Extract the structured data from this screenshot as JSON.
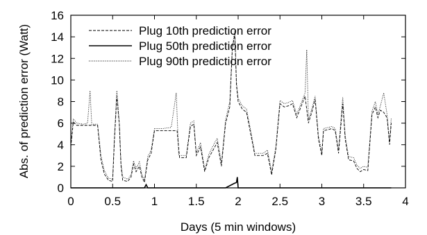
{
  "chart_data": {
    "type": "line",
    "xlabel": "Days (5 min windows)",
    "ylabel": "Abs. of prediction error (Watt)",
    "xlim": [
      0,
      4
    ],
    "ylim": [
      0,
      16
    ],
    "xticks": [
      "0",
      "0.5",
      "1",
      "1.5",
      "2",
      "2.5",
      "3",
      "3.5",
      "4"
    ],
    "yticks": [
      "0",
      "2",
      "4",
      "6",
      "8",
      "10",
      "12",
      "14",
      "16"
    ],
    "grid": false,
    "legend_position": "top-left",
    "series": [
      {
        "name": "Plug 10th prediction error",
        "style": "dashed",
        "color": "#000000",
        "points": [
          [
            0.0,
            3.8
          ],
          [
            0.03,
            6.1
          ],
          [
            0.07,
            5.8
          ],
          [
            0.15,
            5.8
          ],
          [
            0.2,
            5.8
          ],
          [
            0.28,
            5.8
          ],
          [
            0.32,
            5.8
          ],
          [
            0.36,
            2.6
          ],
          [
            0.4,
            1.3
          ],
          [
            0.45,
            0.7
          ],
          [
            0.5,
            0.6
          ],
          [
            0.52,
            4.2
          ],
          [
            0.55,
            8.5
          ],
          [
            0.58,
            5.8
          ],
          [
            0.6,
            2.0
          ],
          [
            0.62,
            0.7
          ],
          [
            0.68,
            0.6
          ],
          [
            0.72,
            1.0
          ],
          [
            0.75,
            2.2
          ],
          [
            0.78,
            1.5
          ],
          [
            0.82,
            2.0
          ],
          [
            0.85,
            1.0
          ],
          [
            0.88,
            0.5
          ],
          [
            0.92,
            2.6
          ],
          [
            0.96,
            3.2
          ],
          [
            1.0,
            5.3
          ],
          [
            1.1,
            5.3
          ],
          [
            1.2,
            5.3
          ],
          [
            1.27,
            5.3
          ],
          [
            1.3,
            2.8
          ],
          [
            1.38,
            2.8
          ],
          [
            1.43,
            5.7
          ],
          [
            1.47,
            5.9
          ],
          [
            1.5,
            3.0
          ],
          [
            1.55,
            3.8
          ],
          [
            1.6,
            1.5
          ],
          [
            1.65,
            2.8
          ],
          [
            1.7,
            3.5
          ],
          [
            1.75,
            4.2
          ],
          [
            1.8,
            2.0
          ],
          [
            1.85,
            6.0
          ],
          [
            1.9,
            7.5
          ],
          [
            1.93,
            12.8
          ],
          [
            1.96,
            14.3
          ],
          [
            1.98,
            9.5
          ],
          [
            2.0,
            8.0
          ],
          [
            2.05,
            7.3
          ],
          [
            2.1,
            7.0
          ],
          [
            2.15,
            5.0
          ],
          [
            2.2,
            3.0
          ],
          [
            2.25,
            3.0
          ],
          [
            2.3,
            3.0
          ],
          [
            2.35,
            3.2
          ],
          [
            2.4,
            1.2
          ],
          [
            2.45,
            3.5
          ],
          [
            2.5,
            7.8
          ],
          [
            2.55,
            7.5
          ],
          [
            2.6,
            7.6
          ],
          [
            2.65,
            7.8
          ],
          [
            2.7,
            6.5
          ],
          [
            2.75,
            7.5
          ],
          [
            2.8,
            8.5
          ],
          [
            2.84,
            6.0
          ],
          [
            2.88,
            7.0
          ],
          [
            2.92,
            8.2
          ],
          [
            2.96,
            4.5
          ],
          [
            3.0,
            3.0
          ],
          [
            3.02,
            5.3
          ],
          [
            3.08,
            5.4
          ],
          [
            3.12,
            5.5
          ],
          [
            3.16,
            5.3
          ],
          [
            3.2,
            3.2
          ],
          [
            3.25,
            7.8
          ],
          [
            3.28,
            4.5
          ],
          [
            3.32,
            2.6
          ],
          [
            3.38,
            2.5
          ],
          [
            3.42,
            1.8
          ],
          [
            3.46,
            1.5
          ],
          [
            3.5,
            1.7
          ],
          [
            3.55,
            1.6
          ],
          [
            3.6,
            6.8
          ],
          [
            3.64,
            7.5
          ],
          [
            3.67,
            6.5
          ],
          [
            3.7,
            7.2
          ],
          [
            3.74,
            7.0
          ],
          [
            3.78,
            6.5
          ],
          [
            3.81,
            4.0
          ],
          [
            3.83,
            6.0
          ]
        ]
      },
      {
        "name": "Plug 50th prediction error",
        "style": "solid",
        "color": "#000000",
        "points": [
          [
            0.0,
            0.0
          ],
          [
            0.88,
            0.0
          ],
          [
            0.9,
            0.3
          ],
          [
            0.92,
            0.0
          ],
          [
            1.85,
            0.0
          ],
          [
            1.9,
            0.2
          ],
          [
            1.95,
            0.4
          ],
          [
            1.98,
            0.5
          ],
          [
            1.99,
            1.0
          ],
          [
            2.0,
            0.0
          ],
          [
            3.83,
            0.0
          ]
        ]
      },
      {
        "name": "Plug 90th prediction error",
        "style": "dotted",
        "color": "#000000",
        "points": [
          [
            0.0,
            4.0
          ],
          [
            0.03,
            6.4
          ],
          [
            0.07,
            6.0
          ],
          [
            0.15,
            5.9
          ],
          [
            0.2,
            6.0
          ],
          [
            0.23,
            9.0
          ],
          [
            0.25,
            5.9
          ],
          [
            0.32,
            5.9
          ],
          [
            0.36,
            3.0
          ],
          [
            0.4,
            1.6
          ],
          [
            0.45,
            0.9
          ],
          [
            0.5,
            0.8
          ],
          [
            0.52,
            4.6
          ],
          [
            0.55,
            9.0
          ],
          [
            0.58,
            6.0
          ],
          [
            0.6,
            2.3
          ],
          [
            0.62,
            1.0
          ],
          [
            0.68,
            0.8
          ],
          [
            0.72,
            1.2
          ],
          [
            0.75,
            2.5
          ],
          [
            0.78,
            1.8
          ],
          [
            0.82,
            2.4
          ],
          [
            0.85,
            1.2
          ],
          [
            0.88,
            0.7
          ],
          [
            0.92,
            2.9
          ],
          [
            0.96,
            3.5
          ],
          [
            1.0,
            5.5
          ],
          [
            1.1,
            5.5
          ],
          [
            1.2,
            5.6
          ],
          [
            1.26,
            8.8
          ],
          [
            1.29,
            3.0
          ],
          [
            1.38,
            3.0
          ],
          [
            1.43,
            6.0
          ],
          [
            1.47,
            6.2
          ],
          [
            1.5,
            3.2
          ],
          [
            1.55,
            4.2
          ],
          [
            1.6,
            1.7
          ],
          [
            1.65,
            3.1
          ],
          [
            1.7,
            3.9
          ],
          [
            1.75,
            4.6
          ],
          [
            1.8,
            2.3
          ],
          [
            1.85,
            6.3
          ],
          [
            1.9,
            8.0
          ],
          [
            1.93,
            13.0
          ],
          [
            1.96,
            14.6
          ],
          [
            1.98,
            9.8
          ],
          [
            2.0,
            8.3
          ],
          [
            2.05,
            7.6
          ],
          [
            2.1,
            7.3
          ],
          [
            2.15,
            5.3
          ],
          [
            2.2,
            3.2
          ],
          [
            2.25,
            3.2
          ],
          [
            2.3,
            3.2
          ],
          [
            2.35,
            3.5
          ],
          [
            2.4,
            1.5
          ],
          [
            2.45,
            3.8
          ],
          [
            2.5,
            8.1
          ],
          [
            2.55,
            7.8
          ],
          [
            2.6,
            7.9
          ],
          [
            2.65,
            8.1
          ],
          [
            2.7,
            6.8
          ],
          [
            2.75,
            7.8
          ],
          [
            2.8,
            8.8
          ],
          [
            2.82,
            12.8
          ],
          [
            2.84,
            6.3
          ],
          [
            2.88,
            7.3
          ],
          [
            2.92,
            8.5
          ],
          [
            2.96,
            4.8
          ],
          [
            3.0,
            3.3
          ],
          [
            3.02,
            5.5
          ],
          [
            3.08,
            5.6
          ],
          [
            3.12,
            5.7
          ],
          [
            3.16,
            5.5
          ],
          [
            3.2,
            3.5
          ],
          [
            3.25,
            8.4
          ],
          [
            3.28,
            4.8
          ],
          [
            3.32,
            2.9
          ],
          [
            3.38,
            2.8
          ],
          [
            3.42,
            2.1
          ],
          [
            3.46,
            1.8
          ],
          [
            3.5,
            2.0
          ],
          [
            3.55,
            1.9
          ],
          [
            3.6,
            7.1
          ],
          [
            3.64,
            8.0
          ],
          [
            3.67,
            6.8
          ],
          [
            3.7,
            7.6
          ],
          [
            3.74,
            8.8
          ],
          [
            3.78,
            6.8
          ],
          [
            3.81,
            4.3
          ],
          [
            3.83,
            6.5
          ]
        ]
      }
    ]
  }
}
